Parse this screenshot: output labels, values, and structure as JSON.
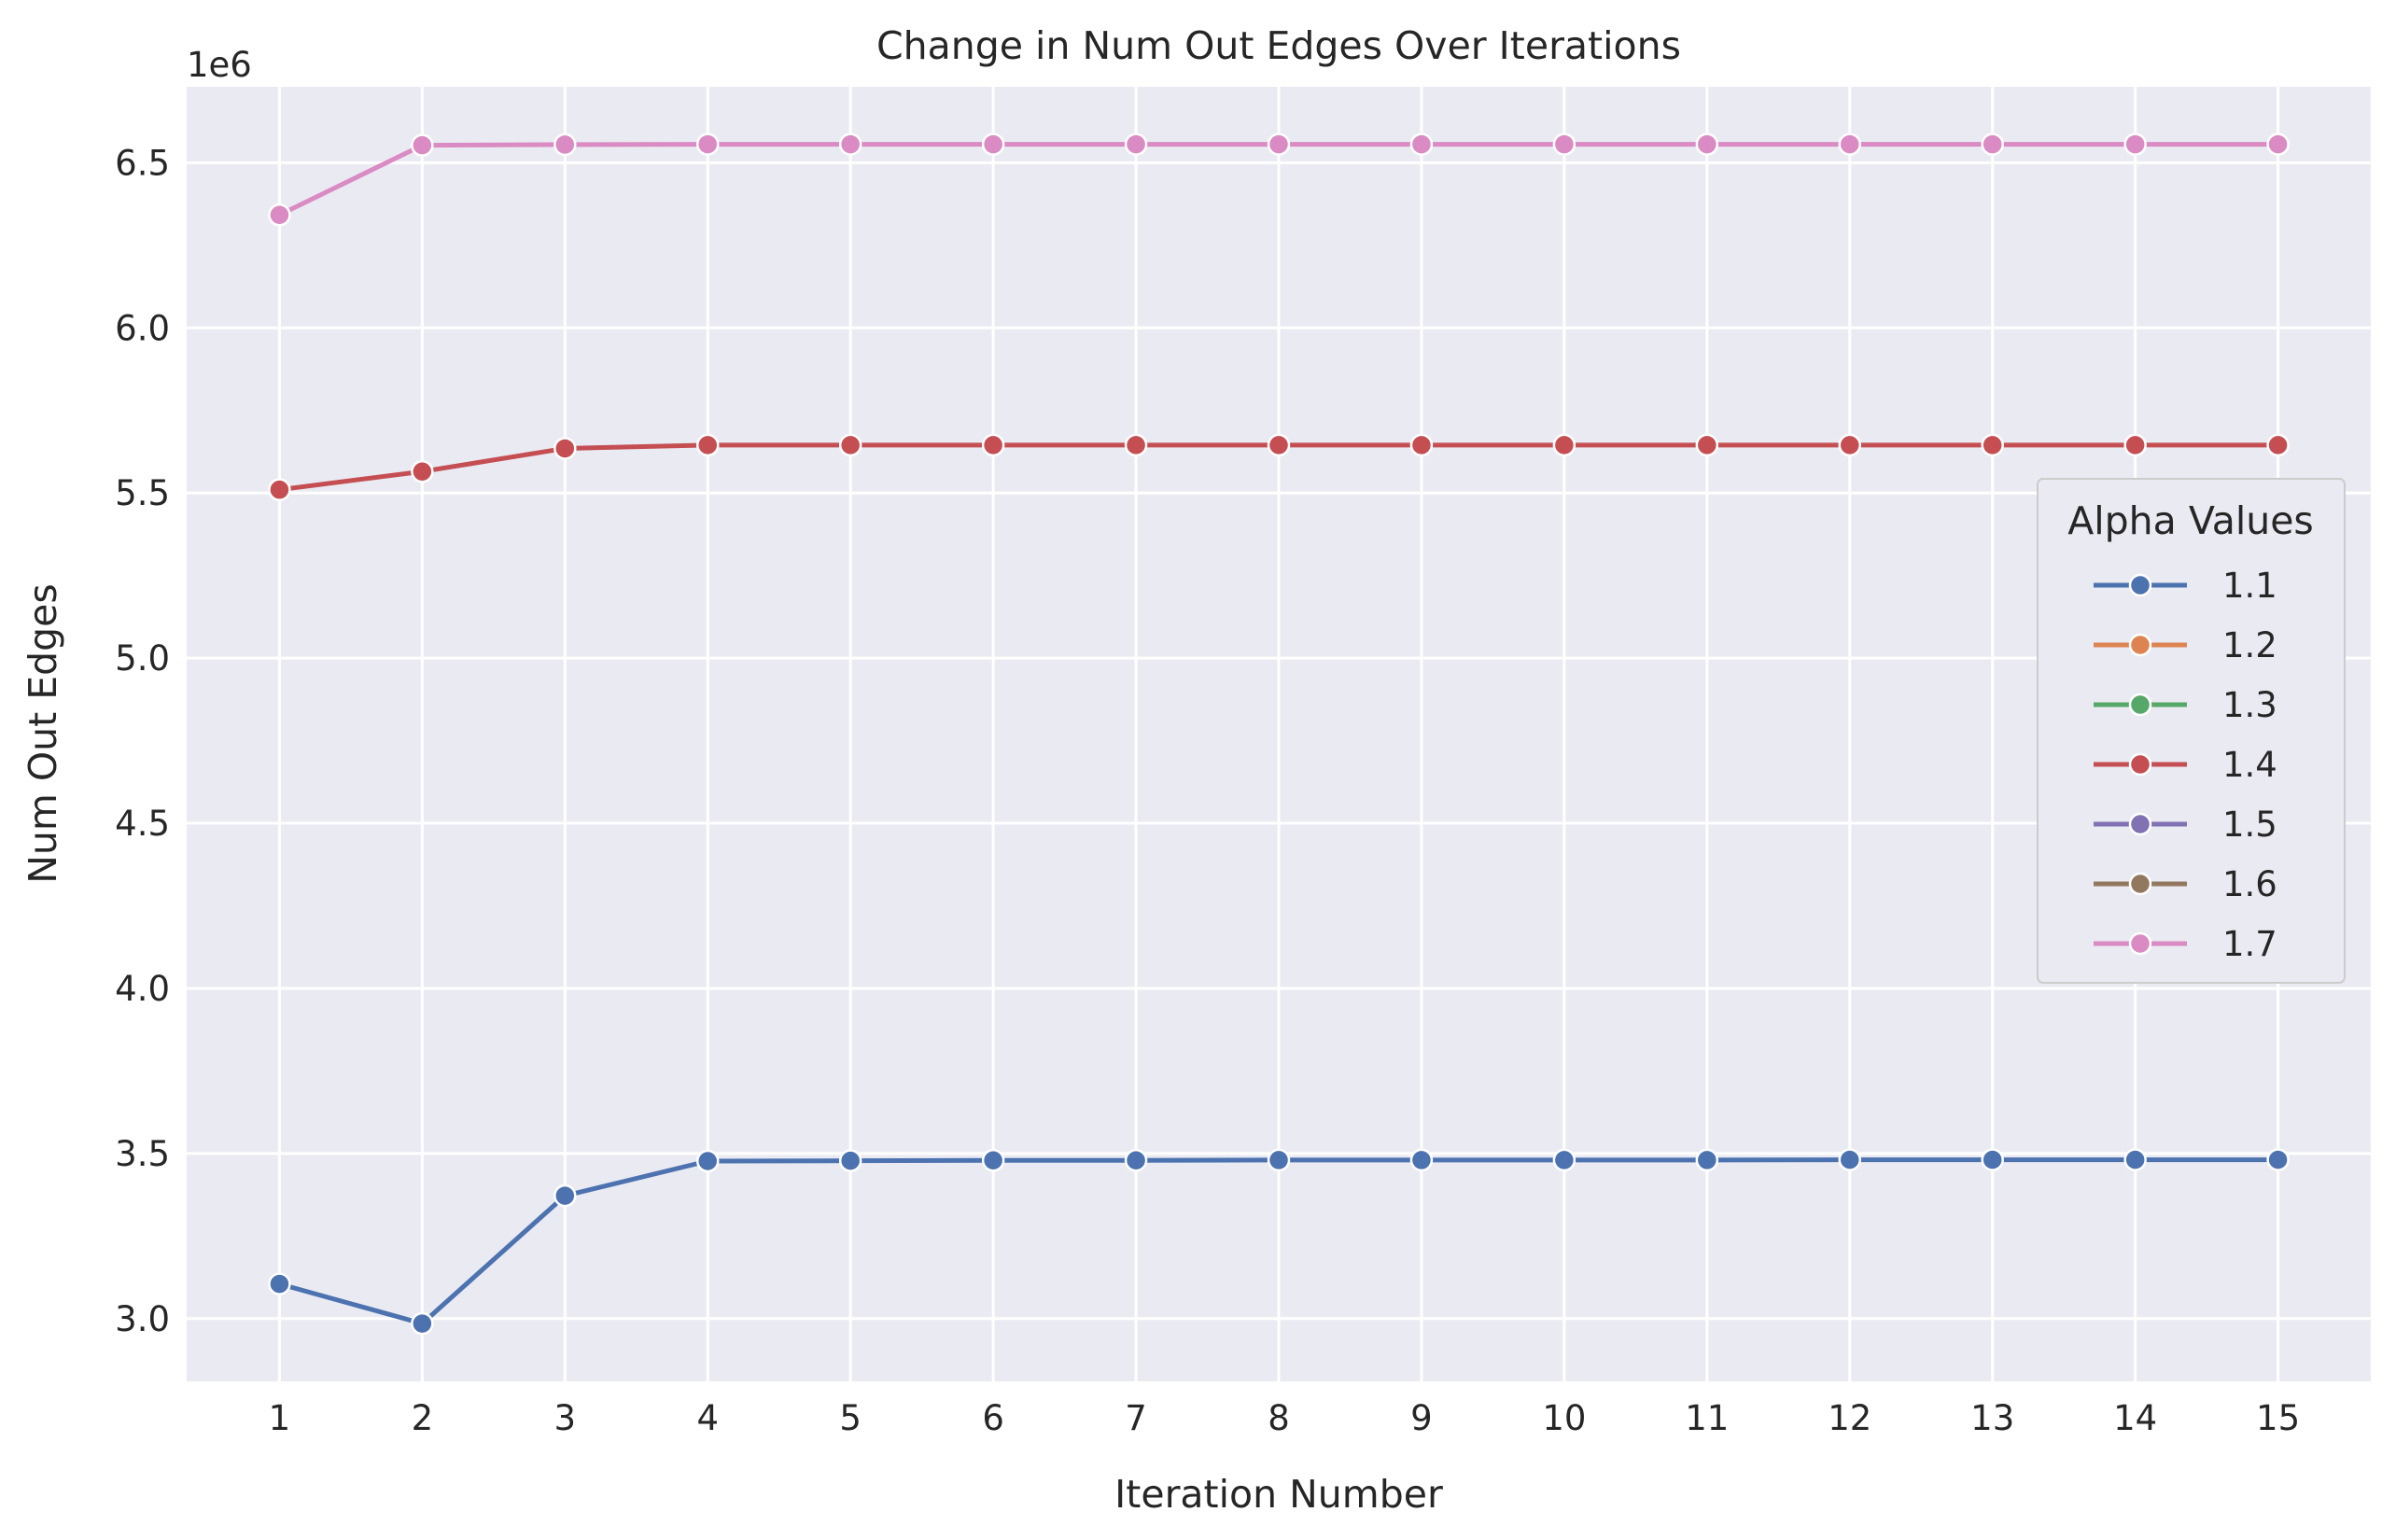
{
  "chart_data": {
    "type": "line",
    "title": "Change in Num Out Edges Over Iterations",
    "xlabel": "Iteration Number",
    "ylabel": "Num Out Edges",
    "y_offset_label": "1e6",
    "y_scale_factor": 1000000,
    "x": [
      1,
      2,
      3,
      4,
      5,
      6,
      7,
      8,
      9,
      10,
      11,
      12,
      13,
      14,
      15
    ],
    "xticks": [
      "1",
      "2",
      "3",
      "4",
      "5",
      "6",
      "7",
      "8",
      "9",
      "10",
      "11",
      "12",
      "13",
      "14",
      "15"
    ],
    "yticks": [
      "3.0",
      "3.5",
      "4.0",
      "4.5",
      "5.0",
      "5.5",
      "6.0",
      "6.5"
    ],
    "ytick_values": [
      3.0,
      3.5,
      4.0,
      4.5,
      5.0,
      5.5,
      6.0,
      6.5
    ],
    "xlim": [
      0.35,
      15.65
    ],
    "ylim": [
      2.81,
      6.73
    ],
    "grid": true,
    "background": "#eaeaf2",
    "legend": {
      "title": "Alpha Values",
      "placement": "center-right",
      "entries": [
        {
          "label": "1.1",
          "color": "#4c72b0"
        },
        {
          "label": "1.2",
          "color": "#dd8452"
        },
        {
          "label": "1.3",
          "color": "#55a868"
        },
        {
          "label": "1.4",
          "color": "#c44e52"
        },
        {
          "label": "1.5",
          "color": "#8172b3"
        },
        {
          "label": "1.6",
          "color": "#937860"
        },
        {
          "label": "1.7",
          "color": "#da8bc3"
        }
      ]
    },
    "series": [
      {
        "name": "1.1",
        "color": "#4c72b0",
        "values": [
          3.105,
          2.985,
          3.372,
          3.477,
          3.478,
          3.479,
          3.479,
          3.48,
          3.48,
          3.48,
          3.48,
          3.481,
          3.481,
          3.481,
          3.481
        ]
      },
      {
        "name": "1.4",
        "color": "#c44e52",
        "values": [
          5.51,
          5.565,
          5.635,
          5.645,
          5.645,
          5.645,
          5.645,
          5.645,
          5.645,
          5.645,
          5.645,
          5.645,
          5.645,
          5.645,
          5.645
        ]
      },
      {
        "name": "1.7",
        "color": "#da8bc3",
        "values": [
          6.342,
          6.553,
          6.555,
          6.556,
          6.556,
          6.556,
          6.556,
          6.556,
          6.556,
          6.556,
          6.556,
          6.556,
          6.556,
          6.556,
          6.556
        ]
      }
    ]
  }
}
